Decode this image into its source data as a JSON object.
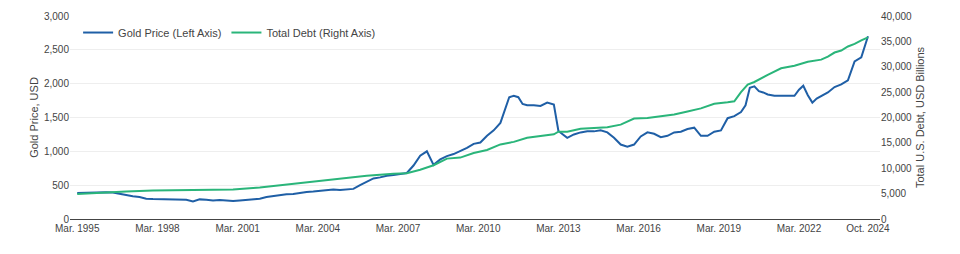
{
  "chart_data": {
    "type": "line",
    "ylabel": "Gold Price, USD",
    "y2label": "Total U.S. Debt, USD Billions",
    "xlim": [
      1994.9,
      2025.2
    ],
    "xticks": [
      {
        "value": 1995.17,
        "label": "Mar. 1995"
      },
      {
        "value": 1998.17,
        "label": "Mar. 1998"
      },
      {
        "value": 2001.17,
        "label": "Mar. 2001"
      },
      {
        "value": 2004.17,
        "label": "Mar. 2004"
      },
      {
        "value": 2007.17,
        "label": "Mar. 2007"
      },
      {
        "value": 2010.17,
        "label": "Mar. 2010"
      },
      {
        "value": 2013.17,
        "label": "Mar. 2013"
      },
      {
        "value": 2016.17,
        "label": "Mar. 2016"
      },
      {
        "value": 2019.17,
        "label": "Mar. 2019"
      },
      {
        "value": 2022.17,
        "label": "Mar. 2022"
      },
      {
        "value": 2024.75,
        "label": "Oct. 2024"
      }
    ],
    "ylim": [
      0,
      3000
    ],
    "yticks": [
      0,
      500,
      {
        "value": 1000,
        "label": "1,000"
      },
      {
        "value": 1500,
        "label": "1,500"
      },
      {
        "value": 2000,
        "label": "2,000"
      },
      {
        "value": 2500,
        "label": "2,500"
      },
      {
        "value": 3000,
        "label": "3,000"
      }
    ],
    "y2lim": [
      0,
      40000
    ],
    "y2ticks": [
      0,
      {
        "value": 5000,
        "label": "5,000"
      },
      {
        "value": 10000,
        "label": "10,000"
      },
      {
        "value": 15000,
        "label": "15,000"
      },
      {
        "value": 20000,
        "label": "20,000"
      },
      {
        "value": 25000,
        "label": "25,000"
      },
      {
        "value": 30000,
        "label": "30,000"
      },
      {
        "value": 35000,
        "label": "35,000"
      },
      {
        "value": 40000,
        "label": "40,000"
      }
    ],
    "grid": true,
    "legend": "upper left",
    "series": [
      {
        "name": "Gold Price (Left Axis)",
        "color": "#1f5fa6",
        "x": [
          1995.17,
          1995.5,
          1995.75,
          1996.0,
          1996.25,
          1996.5,
          1996.75,
          1997.0,
          1997.25,
          1997.5,
          1997.75,
          1998.0,
          1998.25,
          1998.5,
          1998.75,
          1999.0,
          1999.25,
          1999.5,
          1999.75,
          2000.0,
          2000.25,
          2000.5,
          2000.75,
          2001.0,
          2001.25,
          2001.5,
          2001.75,
          2002.0,
          2002.25,
          2002.5,
          2002.75,
          2003.0,
          2003.25,
          2003.5,
          2003.75,
          2004.0,
          2004.25,
          2004.5,
          2004.75,
          2005.0,
          2005.25,
          2005.5,
          2005.75,
          2006.0,
          2006.25,
          2006.5,
          2006.75,
          2007.0,
          2007.25,
          2007.5,
          2007.75,
          2008.0,
          2008.25,
          2008.5,
          2008.75,
          2009.0,
          2009.25,
          2009.5,
          2009.75,
          2010.0,
          2010.25,
          2010.5,
          2010.75,
          2011.0,
          2011.17,
          2011.33,
          2011.5,
          2011.67,
          2011.83,
          2012.0,
          2012.25,
          2012.5,
          2012.75,
          2013.0,
          2013.17,
          2013.33,
          2013.5,
          2013.75,
          2014.0,
          2014.25,
          2014.5,
          2014.75,
          2015.0,
          2015.25,
          2015.5,
          2015.75,
          2016.0,
          2016.25,
          2016.5,
          2016.75,
          2017.0,
          2017.25,
          2017.5,
          2017.75,
          2018.0,
          2018.25,
          2018.5,
          2018.75,
          2019.0,
          2019.25,
          2019.5,
          2019.75,
          2020.0,
          2020.17,
          2020.33,
          2020.5,
          2020.67,
          2020.83,
          2021.0,
          2021.25,
          2021.5,
          2021.75,
          2022.0,
          2022.17,
          2022.33,
          2022.5,
          2022.67,
          2022.83,
          2023.0,
          2023.25,
          2023.5,
          2023.75,
          2024.0,
          2024.25,
          2024.5,
          2024.75
        ],
        "values": [
          385,
          388,
          395,
          400,
          395,
          390,
          370,
          355,
          335,
          325,
          300,
          295,
          292,
          295,
          290,
          290,
          285,
          260,
          290,
          285,
          275,
          280,
          270,
          265,
          275,
          280,
          290,
          300,
          325,
          340,
          360,
          365,
          370,
          390,
          400,
          405,
          415,
          415,
          435,
          430,
          440,
          445,
          500,
          550,
          600,
          615,
          640,
          650,
          660,
          680,
          790,
          935,
          1000,
          800,
          880,
          930,
          960,
          1000,
          1050,
          1110,
          1130,
          1230,
          1310,
          1420,
          1600,
          1800,
          1820,
          1800,
          1700,
          1680,
          1680,
          1670,
          1720,
          1690,
          1300,
          1250,
          1200,
          1250,
          1280,
          1295,
          1295,
          1310,
          1280,
          1200,
          1100,
          1070,
          1100,
          1220,
          1280,
          1260,
          1210,
          1230,
          1280,
          1290,
          1330,
          1350,
          1230,
          1230,
          1290,
          1310,
          1490,
          1520,
          1580,
          1680,
          1940,
          1960,
          1890,
          1870,
          1840,
          1820,
          1820,
          1810,
          1820,
          1910,
          1970,
          1830,
          1720,
          1780,
          1820,
          1870,
          1950,
          1990,
          2050,
          2330,
          2390,
          2700
        ]
      },
      {
        "name": "Total Debt (Right Axis)",
        "color": "#2ab57a",
        "axis": "y2",
        "x": [
          1995.17,
          1996.0,
          1997.0,
          1998.0,
          1999.0,
          2000.0,
          2001.0,
          2002.0,
          2003.0,
          2004.0,
          2005.0,
          2006.0,
          2007.0,
          2007.5,
          2008.0,
          2008.5,
          2009.0,
          2009.5,
          2010.0,
          2010.5,
          2011.0,
          2011.5,
          2012.0,
          2012.5,
          2013.0,
          2013.17,
          2013.5,
          2014.0,
          2014.5,
          2015.0,
          2015.5,
          2016.0,
          2016.5,
          2017.0,
          2017.5,
          2018.0,
          2018.5,
          2019.0,
          2019.25,
          2019.5,
          2019.75,
          2020.0,
          2020.25,
          2020.5,
          2021.0,
          2021.5,
          2022.0,
          2022.5,
          2023.0,
          2023.25,
          2023.5,
          2023.75,
          2024.0,
          2024.25,
          2024.5,
          2024.75
        ],
        "values": [
          4950,
          5200,
          5400,
          5600,
          5700,
          5700,
          5800,
          6200,
          6800,
          7400,
          7900,
          8500,
          8900,
          9000,
          9700,
          10600,
          11900,
          12100,
          13000,
          13600,
          14700,
          15200,
          16000,
          16400,
          16700,
          17200,
          17200,
          17800,
          18000,
          18100,
          18600,
          19800,
          19900,
          20200,
          20600,
          21200,
          21800,
          22700,
          22800,
          23000,
          23200,
          25000,
          26500,
          27000,
          28400,
          29700,
          30200,
          31000,
          31400,
          32000,
          32800,
          33200,
          34000,
          34500,
          35200,
          35800
        ]
      }
    ]
  }
}
